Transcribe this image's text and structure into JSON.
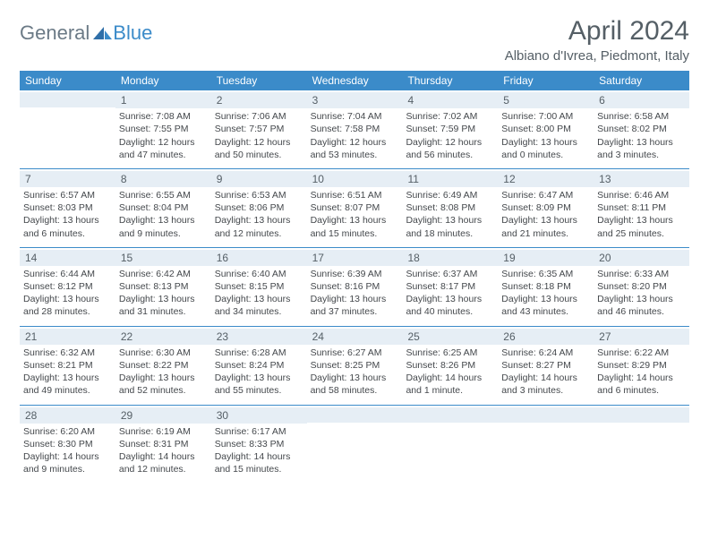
{
  "logo": {
    "text1": "General",
    "text2": "Blue"
  },
  "title": "April 2024",
  "location": "Albiano d'Ivrea, Piedmont, Italy",
  "colors": {
    "header_bg": "#3b8bc9",
    "daynum_bg": "#e6eef5",
    "text": "#44484c",
    "title_text": "#555f66",
    "logo_gray": "#6b7a86",
    "logo_blue": "#3b8bc9"
  },
  "dayNames": [
    "Sunday",
    "Monday",
    "Tuesday",
    "Wednesday",
    "Thursday",
    "Friday",
    "Saturday"
  ],
  "weeks": [
    [
      {
        "num": "",
        "lines": []
      },
      {
        "num": "1",
        "lines": [
          "Sunrise: 7:08 AM",
          "Sunset: 7:55 PM",
          "Daylight: 12 hours and 47 minutes."
        ]
      },
      {
        "num": "2",
        "lines": [
          "Sunrise: 7:06 AM",
          "Sunset: 7:57 PM",
          "Daylight: 12 hours and 50 minutes."
        ]
      },
      {
        "num": "3",
        "lines": [
          "Sunrise: 7:04 AM",
          "Sunset: 7:58 PM",
          "Daylight: 12 hours and 53 minutes."
        ]
      },
      {
        "num": "4",
        "lines": [
          "Sunrise: 7:02 AM",
          "Sunset: 7:59 PM",
          "Daylight: 12 hours and 56 minutes."
        ]
      },
      {
        "num": "5",
        "lines": [
          "Sunrise: 7:00 AM",
          "Sunset: 8:00 PM",
          "Daylight: 13 hours and 0 minutes."
        ]
      },
      {
        "num": "6",
        "lines": [
          "Sunrise: 6:58 AM",
          "Sunset: 8:02 PM",
          "Daylight: 13 hours and 3 minutes."
        ]
      }
    ],
    [
      {
        "num": "7",
        "lines": [
          "Sunrise: 6:57 AM",
          "Sunset: 8:03 PM",
          "Daylight: 13 hours and 6 minutes."
        ]
      },
      {
        "num": "8",
        "lines": [
          "Sunrise: 6:55 AM",
          "Sunset: 8:04 PM",
          "Daylight: 13 hours and 9 minutes."
        ]
      },
      {
        "num": "9",
        "lines": [
          "Sunrise: 6:53 AM",
          "Sunset: 8:06 PM",
          "Daylight: 13 hours and 12 minutes."
        ]
      },
      {
        "num": "10",
        "lines": [
          "Sunrise: 6:51 AM",
          "Sunset: 8:07 PM",
          "Daylight: 13 hours and 15 minutes."
        ]
      },
      {
        "num": "11",
        "lines": [
          "Sunrise: 6:49 AM",
          "Sunset: 8:08 PM",
          "Daylight: 13 hours and 18 minutes."
        ]
      },
      {
        "num": "12",
        "lines": [
          "Sunrise: 6:47 AM",
          "Sunset: 8:09 PM",
          "Daylight: 13 hours and 21 minutes."
        ]
      },
      {
        "num": "13",
        "lines": [
          "Sunrise: 6:46 AM",
          "Sunset: 8:11 PM",
          "Daylight: 13 hours and 25 minutes."
        ]
      }
    ],
    [
      {
        "num": "14",
        "lines": [
          "Sunrise: 6:44 AM",
          "Sunset: 8:12 PM",
          "Daylight: 13 hours and 28 minutes."
        ]
      },
      {
        "num": "15",
        "lines": [
          "Sunrise: 6:42 AM",
          "Sunset: 8:13 PM",
          "Daylight: 13 hours and 31 minutes."
        ]
      },
      {
        "num": "16",
        "lines": [
          "Sunrise: 6:40 AM",
          "Sunset: 8:15 PM",
          "Daylight: 13 hours and 34 minutes."
        ]
      },
      {
        "num": "17",
        "lines": [
          "Sunrise: 6:39 AM",
          "Sunset: 8:16 PM",
          "Daylight: 13 hours and 37 minutes."
        ]
      },
      {
        "num": "18",
        "lines": [
          "Sunrise: 6:37 AM",
          "Sunset: 8:17 PM",
          "Daylight: 13 hours and 40 minutes."
        ]
      },
      {
        "num": "19",
        "lines": [
          "Sunrise: 6:35 AM",
          "Sunset: 8:18 PM",
          "Daylight: 13 hours and 43 minutes."
        ]
      },
      {
        "num": "20",
        "lines": [
          "Sunrise: 6:33 AM",
          "Sunset: 8:20 PM",
          "Daylight: 13 hours and 46 minutes."
        ]
      }
    ],
    [
      {
        "num": "21",
        "lines": [
          "Sunrise: 6:32 AM",
          "Sunset: 8:21 PM",
          "Daylight: 13 hours and 49 minutes."
        ]
      },
      {
        "num": "22",
        "lines": [
          "Sunrise: 6:30 AM",
          "Sunset: 8:22 PM",
          "Daylight: 13 hours and 52 minutes."
        ]
      },
      {
        "num": "23",
        "lines": [
          "Sunrise: 6:28 AM",
          "Sunset: 8:24 PM",
          "Daylight: 13 hours and 55 minutes."
        ]
      },
      {
        "num": "24",
        "lines": [
          "Sunrise: 6:27 AM",
          "Sunset: 8:25 PM",
          "Daylight: 13 hours and 58 minutes."
        ]
      },
      {
        "num": "25",
        "lines": [
          "Sunrise: 6:25 AM",
          "Sunset: 8:26 PM",
          "Daylight: 14 hours and 1 minute."
        ]
      },
      {
        "num": "26",
        "lines": [
          "Sunrise: 6:24 AM",
          "Sunset: 8:27 PM",
          "Daylight: 14 hours and 3 minutes."
        ]
      },
      {
        "num": "27",
        "lines": [
          "Sunrise: 6:22 AM",
          "Sunset: 8:29 PM",
          "Daylight: 14 hours and 6 minutes."
        ]
      }
    ],
    [
      {
        "num": "28",
        "lines": [
          "Sunrise: 6:20 AM",
          "Sunset: 8:30 PM",
          "Daylight: 14 hours and 9 minutes."
        ]
      },
      {
        "num": "29",
        "lines": [
          "Sunrise: 6:19 AM",
          "Sunset: 8:31 PM",
          "Daylight: 14 hours and 12 minutes."
        ]
      },
      {
        "num": "30",
        "lines": [
          "Sunrise: 6:17 AM",
          "Sunset: 8:33 PM",
          "Daylight: 14 hours and 15 minutes."
        ]
      },
      {
        "num": "",
        "lines": []
      },
      {
        "num": "",
        "lines": []
      },
      {
        "num": "",
        "lines": []
      },
      {
        "num": "",
        "lines": []
      }
    ]
  ]
}
